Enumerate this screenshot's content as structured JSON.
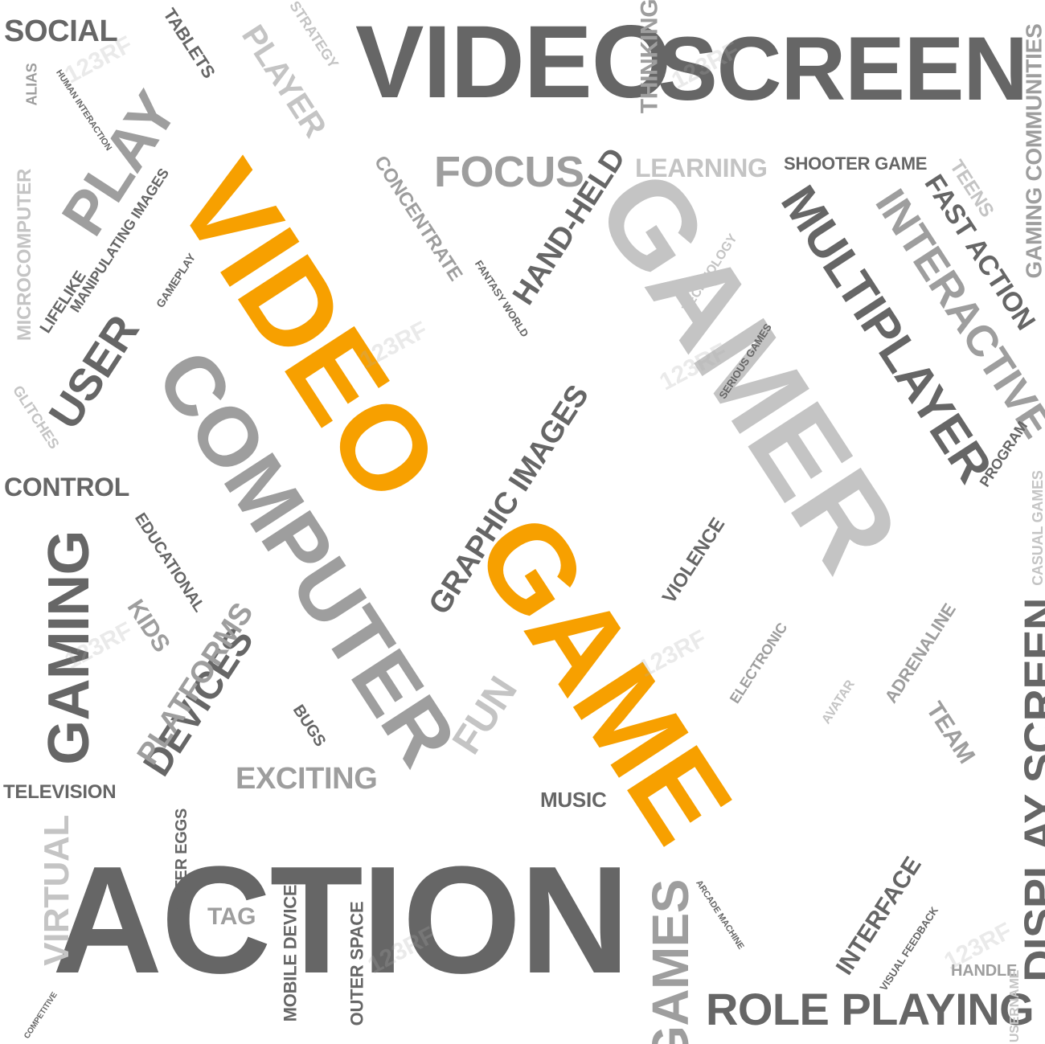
{
  "colors": {
    "orange": "#f7a000",
    "dark": "#666666",
    "mid": "#9e9e9e",
    "light": "#c4c4c4",
    "pale": "#d2d2d2"
  },
  "words": [
    {
      "text": "VIDEO",
      "color": "orange"
    },
    {
      "text": "GAME",
      "color": "orange"
    },
    {
      "text": "GAMER",
      "color": "light"
    },
    {
      "text": "ACTION",
      "color": "dark"
    },
    {
      "text": "VIDEO",
      "color": "dark"
    },
    {
      "text": "SCREEN",
      "color": "dark"
    },
    {
      "text": "COMPUTER",
      "color": "mid"
    },
    {
      "text": "MULTIPLAYER",
      "color": "dark"
    },
    {
      "text": "INTERACTIVE",
      "color": "mid"
    },
    {
      "text": "GAMING",
      "color": "dark"
    },
    {
      "text": "DISPLAY SCREEN",
      "color": "dark"
    },
    {
      "text": "ROLE PLAYING",
      "color": "dark"
    },
    {
      "text": "PLAY",
      "color": "mid"
    },
    {
      "text": "PLAYER",
      "color": "light"
    },
    {
      "text": "USER",
      "color": "dark"
    },
    {
      "text": "DEVICES",
      "color": "dark"
    },
    {
      "text": "GRAPHIC IMAGES",
      "color": "dark"
    },
    {
      "text": "HAND-HELD",
      "color": "dark"
    },
    {
      "text": "FOCUS",
      "color": "mid"
    },
    {
      "text": "SOCIAL",
      "color": "dark"
    },
    {
      "text": "TABLETS",
      "color": "dark"
    },
    {
      "text": "STRATEGY",
      "color": "light"
    },
    {
      "text": "THINKING",
      "color": "mid"
    },
    {
      "text": "GAMING COMMUNITIES",
      "color": "mid"
    },
    {
      "text": "LEARNING",
      "color": "light"
    },
    {
      "text": "SHOOTER GAME",
      "color": "dark"
    },
    {
      "text": "FAST ACTION",
      "color": "dark"
    },
    {
      "text": "TEENS",
      "color": "light"
    },
    {
      "text": "CONCENTRATE",
      "color": "mid"
    },
    {
      "text": "MANIPULATING IMAGES",
      "color": "dark"
    },
    {
      "text": "MICROCOMPUTER",
      "color": "light"
    },
    {
      "text": "LIFELIKE",
      "color": "dark"
    },
    {
      "text": "GAMEPLAY",
      "color": "dark"
    },
    {
      "text": "FANTASY WORLD",
      "color": "dark"
    },
    {
      "text": "TECHNOLOGY",
      "color": "light"
    },
    {
      "text": "SERIOUS GAMES",
      "color": "dark"
    },
    {
      "text": "ALIAS",
      "color": "mid"
    },
    {
      "text": "HUMAN INTERACTION",
      "color": "dark"
    },
    {
      "text": "GLITCHES",
      "color": "light"
    },
    {
      "text": "CONTROL",
      "color": "dark"
    },
    {
      "text": "EDUCATIONAL",
      "color": "dark"
    },
    {
      "text": "KIDS",
      "color": "mid"
    },
    {
      "text": "PLATFORMS",
      "color": "mid"
    },
    {
      "text": "BUGS",
      "color": "dark"
    },
    {
      "text": "EXCITING",
      "color": "mid"
    },
    {
      "text": "FUN",
      "color": "light"
    },
    {
      "text": "TELEVISION",
      "color": "dark"
    },
    {
      "text": "VIRTUAL",
      "color": "light"
    },
    {
      "text": "EASTER EGGS",
      "color": "dark"
    },
    {
      "text": "TAG",
      "color": "mid"
    },
    {
      "text": "MOBILE DEVICE",
      "color": "dark"
    },
    {
      "text": "OUTER SPACE",
      "color": "dark"
    },
    {
      "text": "MUSIC",
      "color": "dark"
    },
    {
      "text": "GAMES",
      "color": "mid"
    },
    {
      "text": "ARCADE MACHINE",
      "color": "dark"
    },
    {
      "text": "INTERFACE",
      "color": "dark"
    },
    {
      "text": "VISUAL FEEDBACK",
      "color": "dark"
    },
    {
      "text": "HANDLE",
      "color": "mid"
    },
    {
      "text": "USERNAME",
      "color": "light"
    },
    {
      "text": "CASUAL GAMES",
      "color": "light"
    },
    {
      "text": "PROGRAM",
      "color": "dark"
    },
    {
      "text": "VIOLENCE",
      "color": "dark"
    },
    {
      "text": "ELECTRONIC",
      "color": "mid"
    },
    {
      "text": "ADRENALINE",
      "color": "mid"
    },
    {
      "text": "AVATAR",
      "color": "light"
    },
    {
      "text": "TEAM",
      "color": "mid"
    },
    {
      "text": "COMPETITIVE",
      "color": "dark"
    }
  ],
  "watermark": "123RF"
}
